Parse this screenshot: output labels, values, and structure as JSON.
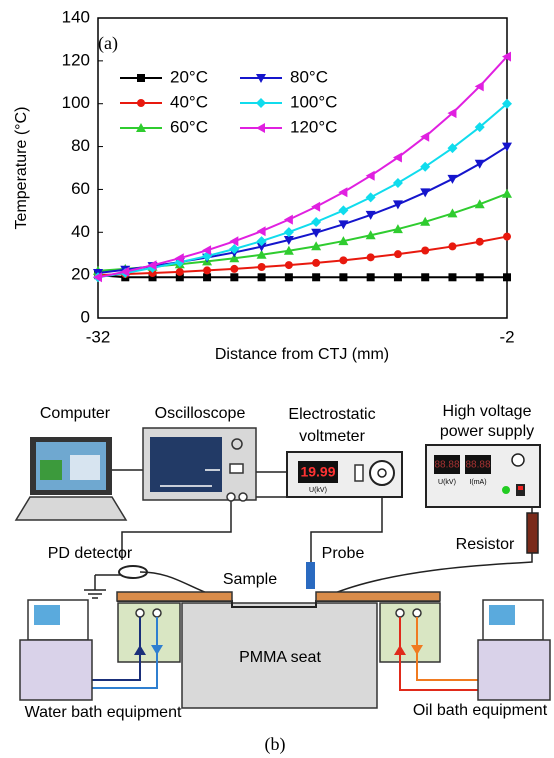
{
  "chart_data": {
    "type": "line",
    "annotation": "(a)",
    "x_label": "Distance from CTJ (mm)",
    "y_label": "Temperature (°C)",
    "x": [
      -32,
      -30,
      -28,
      -26,
      -24,
      -22,
      -20,
      -18,
      -16,
      -14,
      -12,
      -10,
      -8,
      -6,
      -4,
      -2
    ],
    "xlim": [
      -32,
      -2
    ],
    "xticks": [
      -32,
      -2
    ],
    "ylim": [
      0,
      140
    ],
    "yticks": [
      0,
      20,
      40,
      60,
      80,
      100,
      120,
      140
    ],
    "grid": false,
    "legend": "upper left",
    "series": [
      {
        "name": "20°C",
        "color": "#000000",
        "marker": "square",
        "values": [
          20,
          19,
          19,
          19,
          19,
          19,
          19,
          19,
          19,
          19,
          19,
          19,
          19,
          19,
          19,
          19
        ]
      },
      {
        "name": "40°C",
        "color": "#e8190e",
        "marker": "circle",
        "values": [
          20,
          20.5,
          21,
          21.5,
          22.2,
          22.9,
          23.8,
          24.7,
          25.7,
          26.9,
          28.3,
          29.8,
          31.5,
          33.4,
          35.6,
          38
        ]
      },
      {
        "name": "60°C",
        "color": "#2fcc2f",
        "marker": "triangle-up",
        "values": [
          22,
          22.9,
          23.9,
          25.1,
          26.4,
          27.9,
          29.5,
          31.4,
          33.5,
          35.9,
          38.6,
          41.5,
          44.9,
          48.8,
          53.1,
          58
        ]
      },
      {
        "name": "80°C",
        "color": "#1515cc",
        "marker": "triangle-down",
        "values": [
          21,
          22.5,
          24.2,
          26.1,
          28.2,
          30.6,
          33.3,
          36.4,
          39.8,
          43.7,
          48.1,
          53,
          58.6,
          64.9,
          72,
          80
        ]
      },
      {
        "name": "100°C",
        "color": "#10dced",
        "marker": "diamond",
        "values": [
          19,
          21,
          23.4,
          26,
          28.9,
          32.2,
          35.9,
          40.1,
          44.8,
          50.2,
          56.3,
          63,
          70.6,
          79.3,
          89.1,
          100
        ]
      },
      {
        "name": "120°C",
        "color": "#e020e0",
        "marker": "triangle-left",
        "values": [
          19,
          21.6,
          24.6,
          27.9,
          31.6,
          35.8,
          40.5,
          45.9,
          51.9,
          58.7,
          66.4,
          74.9,
          84.6,
          95.6,
          108.1,
          122
        ]
      }
    ]
  },
  "diagram": {
    "panel_label": "(b)",
    "computer": "Computer",
    "oscilloscope": "Oscilloscope",
    "voltmeter": [
      "Electrostatic",
      "voltmeter"
    ],
    "voltmeter_display": "19.99",
    "voltmeter_unit": "U(kV)",
    "power_supply": [
      "High voltage",
      "power supply"
    ],
    "power_displays": [
      "88.88",
      "88.88"
    ],
    "power_units": [
      "U(kV)",
      "I(mA)"
    ],
    "pd_detector": "PD detector",
    "probe": "Probe",
    "resistor": "Resistor",
    "sample": "Sample",
    "seat": "PMMA seat",
    "water_bath": "Water bath equipment",
    "oil_bath": "Oil bath equipment"
  }
}
